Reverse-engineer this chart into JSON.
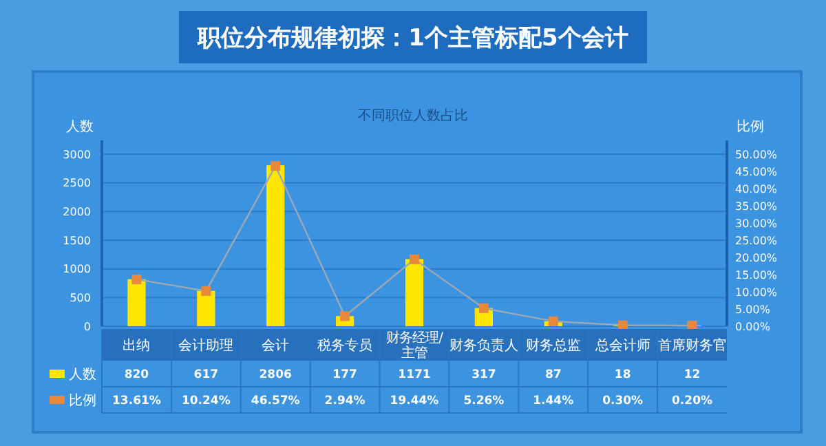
{
  "chart_data": {
    "type": "bar",
    "title": "职位分布规律初探：1个主管标配5个会计",
    "subtitle": "不同职位人数占比",
    "ylabel": "人数",
    "y2label": "比例",
    "categories": [
      "出纳",
      "会计助理",
      "会计",
      "税务专员",
      "财务经理/主管",
      "财务负责人",
      "财务总监",
      "总会计师",
      "首席财务官"
    ],
    "series": [
      {
        "name": "人数",
        "color": "#ffe600",
        "values": [
          820,
          617,
          2806,
          177,
          1171,
          317,
          87,
          18,
          12
        ],
        "value_labels": [
          "820",
          "617",
          "2806",
          "177",
          "1171",
          "317",
          "87",
          "18",
          "12"
        ]
      },
      {
        "name": "比例",
        "type": "line",
        "axis": "y2",
        "color": "#e8883a",
        "marker": "square",
        "values": [
          13.61,
          10.24,
          46.57,
          2.94,
          19.44,
          5.26,
          1.44,
          0.3,
          0.2
        ],
        "value_labels": [
          "13.61%",
          "10.24%",
          "46.57%",
          "2.94%",
          "19.44%",
          "5.26%",
          "1.44%",
          "0.30%",
          "0.20%"
        ]
      }
    ],
    "ylim": [
      0,
      3000
    ],
    "yticks": [
      0,
      500,
      1000,
      1500,
      2000,
      2500,
      3000
    ],
    "y2lim": [
      0,
      50
    ],
    "y2ticks": [
      {
        "value": 0,
        "label": "0.00%"
      },
      {
        "value": 5,
        "label": "5.00%"
      },
      {
        "value": 10,
        "label": "10.00%"
      },
      {
        "value": 15,
        "label": "15.00%"
      },
      {
        "value": 20,
        "label": "20.00%"
      },
      {
        "value": 25,
        "label": "25.00%"
      },
      {
        "value": 30,
        "label": "30.00%"
      },
      {
        "value": 35,
        "label": "35.00%"
      },
      {
        "value": 40,
        "label": "40.00%"
      },
      {
        "value": 45,
        "label": "45.00%"
      },
      {
        "value": 50,
        "label": "50.00%"
      }
    ],
    "grid": "y",
    "legend": "bottom left"
  }
}
